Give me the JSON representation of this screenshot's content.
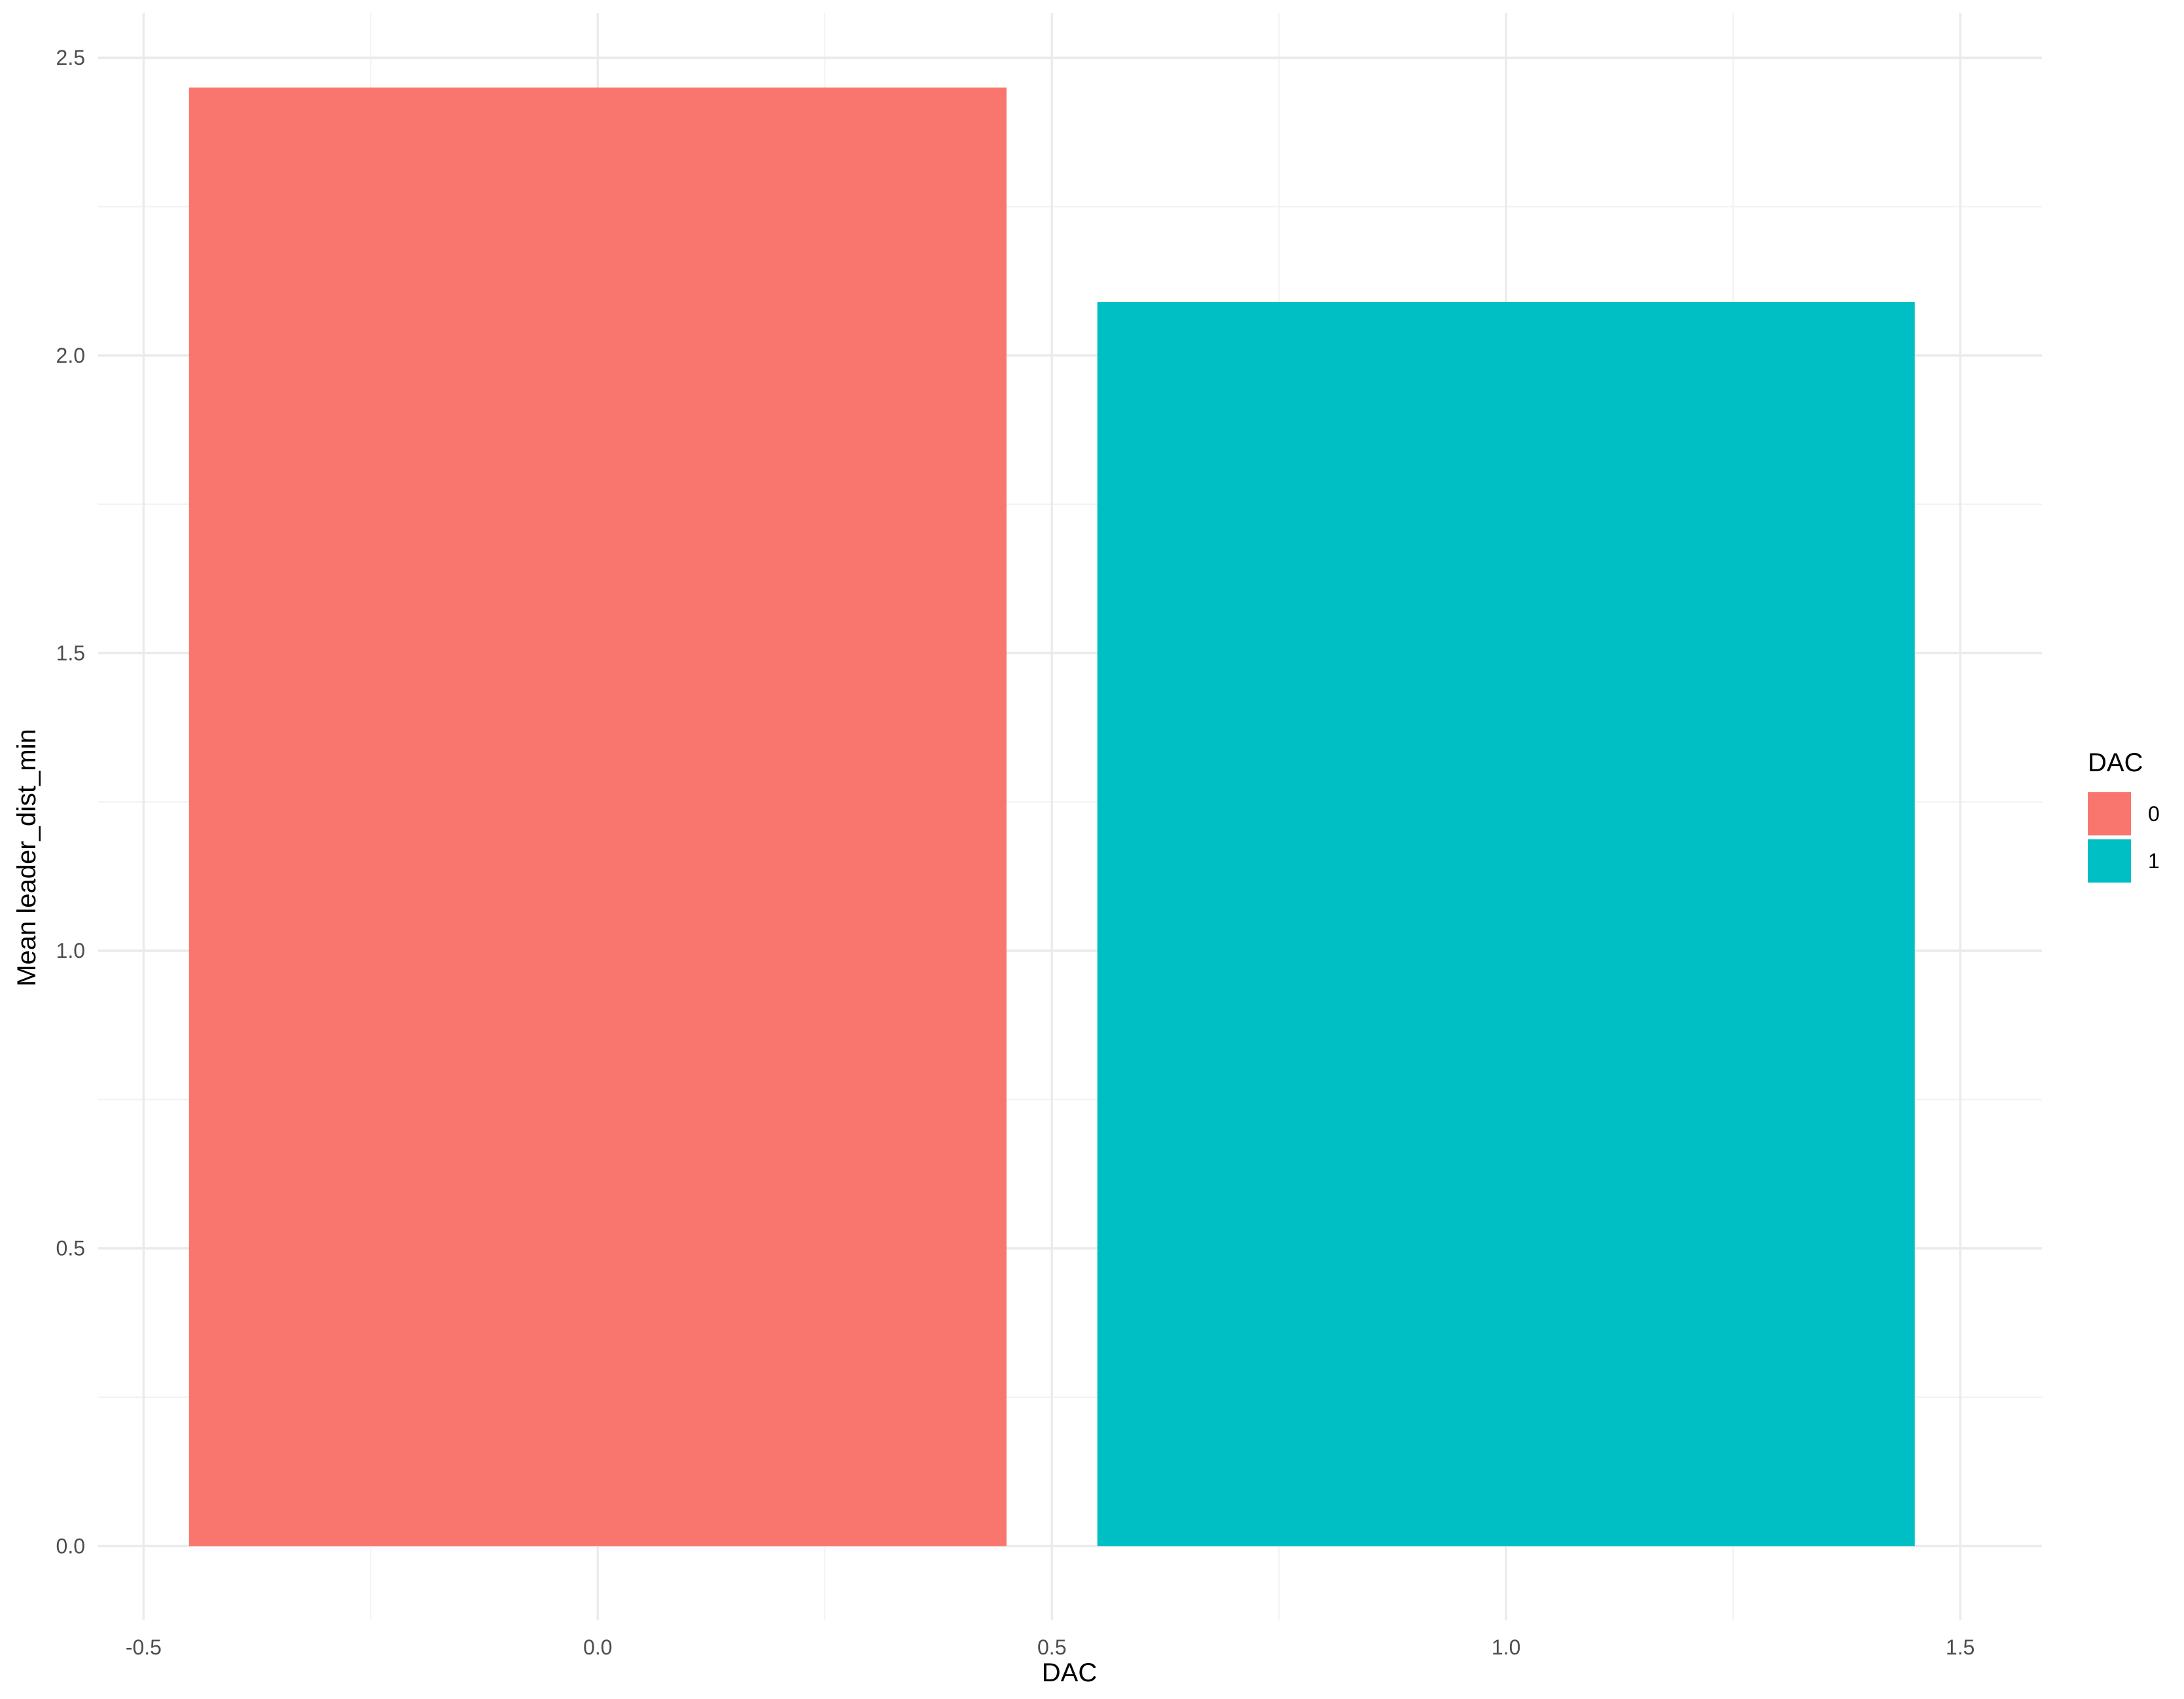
{
  "chart_data": {
    "type": "bar",
    "xlabel": "DAC",
    "ylabel": "Mean leader_dist_min",
    "xlim": [
      -0.55,
      1.59
    ],
    "ylim": [
      -0.125,
      2.575
    ],
    "x_ticks": [
      -0.5,
      0.0,
      0.5,
      1.0,
      1.5
    ],
    "x_tick_labels": [
      "-0.5",
      "0.0",
      "0.5",
      "1.0",
      "1.5"
    ],
    "y_ticks": [
      0.0,
      0.5,
      1.0,
      1.5,
      2.0,
      2.5
    ],
    "y_tick_labels": [
      "0.0",
      "0.5",
      "1.0",
      "1.5",
      "2.0",
      "2.5"
    ],
    "bar_width": 0.9,
    "bars": [
      {
        "x": 0,
        "value": 2.45,
        "color": "#F8766D",
        "group": "0"
      },
      {
        "x": 1,
        "value": 2.09,
        "color": "#00BFC4",
        "group": "1"
      }
    ],
    "grid": true,
    "legend": {
      "title": "DAC",
      "placement": "right",
      "entries": [
        {
          "label": "0",
          "color": "#F8766D"
        },
        {
          "label": "1",
          "color": "#00BFC4"
        }
      ]
    }
  }
}
